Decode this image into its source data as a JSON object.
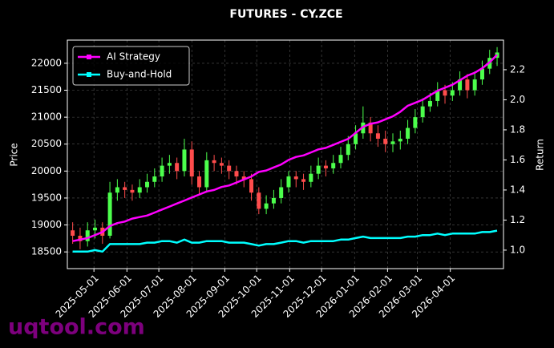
{
  "chart_data": {
    "type": "candlestick",
    "title": "FUTURES - CY.ZCE",
    "ylabel": "Price",
    "y2label": "Return",
    "watermark": "uqtool.com",
    "x": [
      "2025-04-11",
      "2025-04-18",
      "2025-04-25",
      "2025-05-02",
      "2025-05-09",
      "2025-05-16",
      "2025-05-23",
      "2025-05-30",
      "2025-06-06",
      "2025-06-13",
      "2025-06-20",
      "2025-06-27",
      "2025-07-04",
      "2025-07-11",
      "2025-07-18",
      "2025-07-25",
      "2025-08-01",
      "2025-08-08",
      "2025-08-15",
      "2025-08-22",
      "2025-08-29",
      "2025-09-05",
      "2025-09-12",
      "2025-09-19",
      "2025-09-26",
      "2025-10-03",
      "2025-10-10",
      "2025-10-17",
      "2025-10-24",
      "2025-10-31",
      "2025-11-07",
      "2025-11-14",
      "2025-11-21",
      "2025-11-28",
      "2025-12-05",
      "2025-12-12",
      "2025-12-19",
      "2025-12-26",
      "2026-01-02",
      "2026-01-09",
      "2026-01-16",
      "2026-01-23",
      "2026-01-30",
      "2026-02-06",
      "2026-02-13",
      "2026-02-20",
      "2026-02-27",
      "2026-03-06",
      "2026-03-13",
      "2026-03-20",
      "2026-03-27",
      "2026-04-03",
      "2026-04-10",
      "2026-04-17",
      "2026-04-24",
      "2026-05-01",
      "2026-05-08",
      "2026-05-15"
    ],
    "open": [
      18900,
      18800,
      18700,
      18900,
      18950,
      18800,
      19600,
      19700,
      19650,
      19600,
      19700,
      19800,
      19900,
      20100,
      20150,
      20000,
      20400,
      19900,
      19700,
      20200,
      20150,
      20100,
      20000,
      19900,
      19850,
      19600,
      19300,
      19400,
      19500,
      19700,
      19900,
      19850,
      19800,
      19950,
      20100,
      20050,
      20150,
      20300,
      20500,
      20700,
      20900,
      20700,
      20600,
      20500,
      20550,
      20600,
      20800,
      21000,
      21200,
      21300,
      21500,
      21400,
      21500,
      21700,
      21500,
      21700,
      21900,
      22100
    ],
    "high": [
      19050,
      18950,
      19050,
      19100,
      19050,
      19800,
      19850,
      19800,
      19750,
      19850,
      19950,
      20050,
      20250,
      20300,
      20250,
      20600,
      20550,
      20000,
      20350,
      20300,
      20250,
      20200,
      20100,
      20000,
      19950,
      19700,
      19550,
      19650,
      19850,
      20000,
      20000,
      19950,
      20100,
      20250,
      20200,
      20300,
      20450,
      20650,
      20850,
      21200,
      21000,
      20850,
      20750,
      20700,
      20750,
      20950,
      21150,
      21350,
      21450,
      21650,
      21600,
      21650,
      21850,
      21800,
      21850,
      22050,
      22250,
      22300
    ],
    "low": [
      18650,
      18550,
      18600,
      18750,
      18650,
      18750,
      19450,
      19500,
      19450,
      19500,
      19600,
      19700,
      19800,
      19950,
      19850,
      19900,
      19750,
      19550,
      19600,
      20000,
      19950,
      19850,
      19750,
      19700,
      19450,
      19200,
      19200,
      19300,
      19400,
      19600,
      19700,
      19650,
      19700,
      19850,
      19900,
      19950,
      20050,
      20200,
      20400,
      20600,
      20550,
      20450,
      20350,
      20350,
      20400,
      20500,
      20700,
      20900,
      21100,
      21200,
      21250,
      21300,
      21400,
      21350,
      21400,
      21600,
      21800,
      21950
    ],
    "close": [
      18800,
      18700,
      18900,
      18950,
      18800,
      19600,
      19700,
      19650,
      19600,
      19700,
      19800,
      19900,
      20100,
      20150,
      20000,
      20400,
      19900,
      19700,
      20200,
      20150,
      20100,
      20000,
      19900,
      19850,
      19600,
      19300,
      19400,
      19500,
      19700,
      19900,
      19850,
      19800,
      19950,
      20100,
      20050,
      20150,
      20300,
      20500,
      20700,
      20900,
      20700,
      20600,
      20500,
      20550,
      20600,
      20800,
      21000,
      21200,
      21300,
      21500,
      21400,
      21500,
      21700,
      21500,
      21700,
      21900,
      22100,
      22200
    ],
    "up_color": "#4cff4c",
    "down_color": "#ff4c4c",
    "series": [
      {
        "name": "AI Strategy",
        "color": "#ff00ff",
        "axis": "y2",
        "values": [
          1.06,
          1.07,
          1.08,
          1.1,
          1.12,
          1.16,
          1.18,
          1.19,
          1.21,
          1.22,
          1.23,
          1.25,
          1.27,
          1.29,
          1.31,
          1.33,
          1.35,
          1.37,
          1.39,
          1.4,
          1.42,
          1.43,
          1.45,
          1.47,
          1.49,
          1.52,
          1.53,
          1.55,
          1.57,
          1.6,
          1.62,
          1.63,
          1.65,
          1.67,
          1.68,
          1.7,
          1.72,
          1.74,
          1.78,
          1.82,
          1.84,
          1.85,
          1.87,
          1.89,
          1.92,
          1.96,
          1.98,
          2.0,
          2.03,
          2.06,
          2.08,
          2.1,
          2.13,
          2.16,
          2.18,
          2.21,
          2.25,
          2.3
        ]
      },
      {
        "name": "Buy-and-Hold",
        "color": "#00ffff",
        "axis": "y2",
        "values": [
          0.99,
          0.99,
          0.99,
          1.0,
          0.99,
          1.04,
          1.04,
          1.04,
          1.04,
          1.04,
          1.05,
          1.05,
          1.06,
          1.06,
          1.05,
          1.07,
          1.05,
          1.05,
          1.06,
          1.06,
          1.06,
          1.05,
          1.05,
          1.05,
          1.04,
          1.03,
          1.04,
          1.04,
          1.05,
          1.06,
          1.06,
          1.05,
          1.06,
          1.06,
          1.06,
          1.06,
          1.07,
          1.07,
          1.08,
          1.09,
          1.08,
          1.08,
          1.08,
          1.08,
          1.08,
          1.09,
          1.09,
          1.1,
          1.1,
          1.11,
          1.1,
          1.11,
          1.11,
          1.11,
          1.11,
          1.12,
          1.12,
          1.13
        ]
      }
    ],
    "xlim": [
      "2025-04-06",
      "2026-05-21"
    ],
    "xticks": [
      "2025-05-01",
      "2025-06-01",
      "2025-07-01",
      "2025-08-01",
      "2025-09-01",
      "2025-10-01",
      "2025-11-01",
      "2025-12-01",
      "2026-01-01",
      "2026-02-01",
      "2026-03-01",
      "2026-04-01"
    ],
    "ylim": [
      18190,
      22430
    ],
    "yticks": [
      18500,
      19000,
      19500,
      20000,
      20500,
      21000,
      21500,
      22000
    ],
    "y2lim": [
      0.877,
      2.397
    ],
    "y2ticks": [
      {
        "value": 1,
        "label": "1.0"
      },
      1.2,
      1.4,
      1.6,
      1.8,
      {
        "value": 2,
        "label": "2.0"
      },
      2.2
    ],
    "grid": true,
    "legend": "upper-left"
  }
}
